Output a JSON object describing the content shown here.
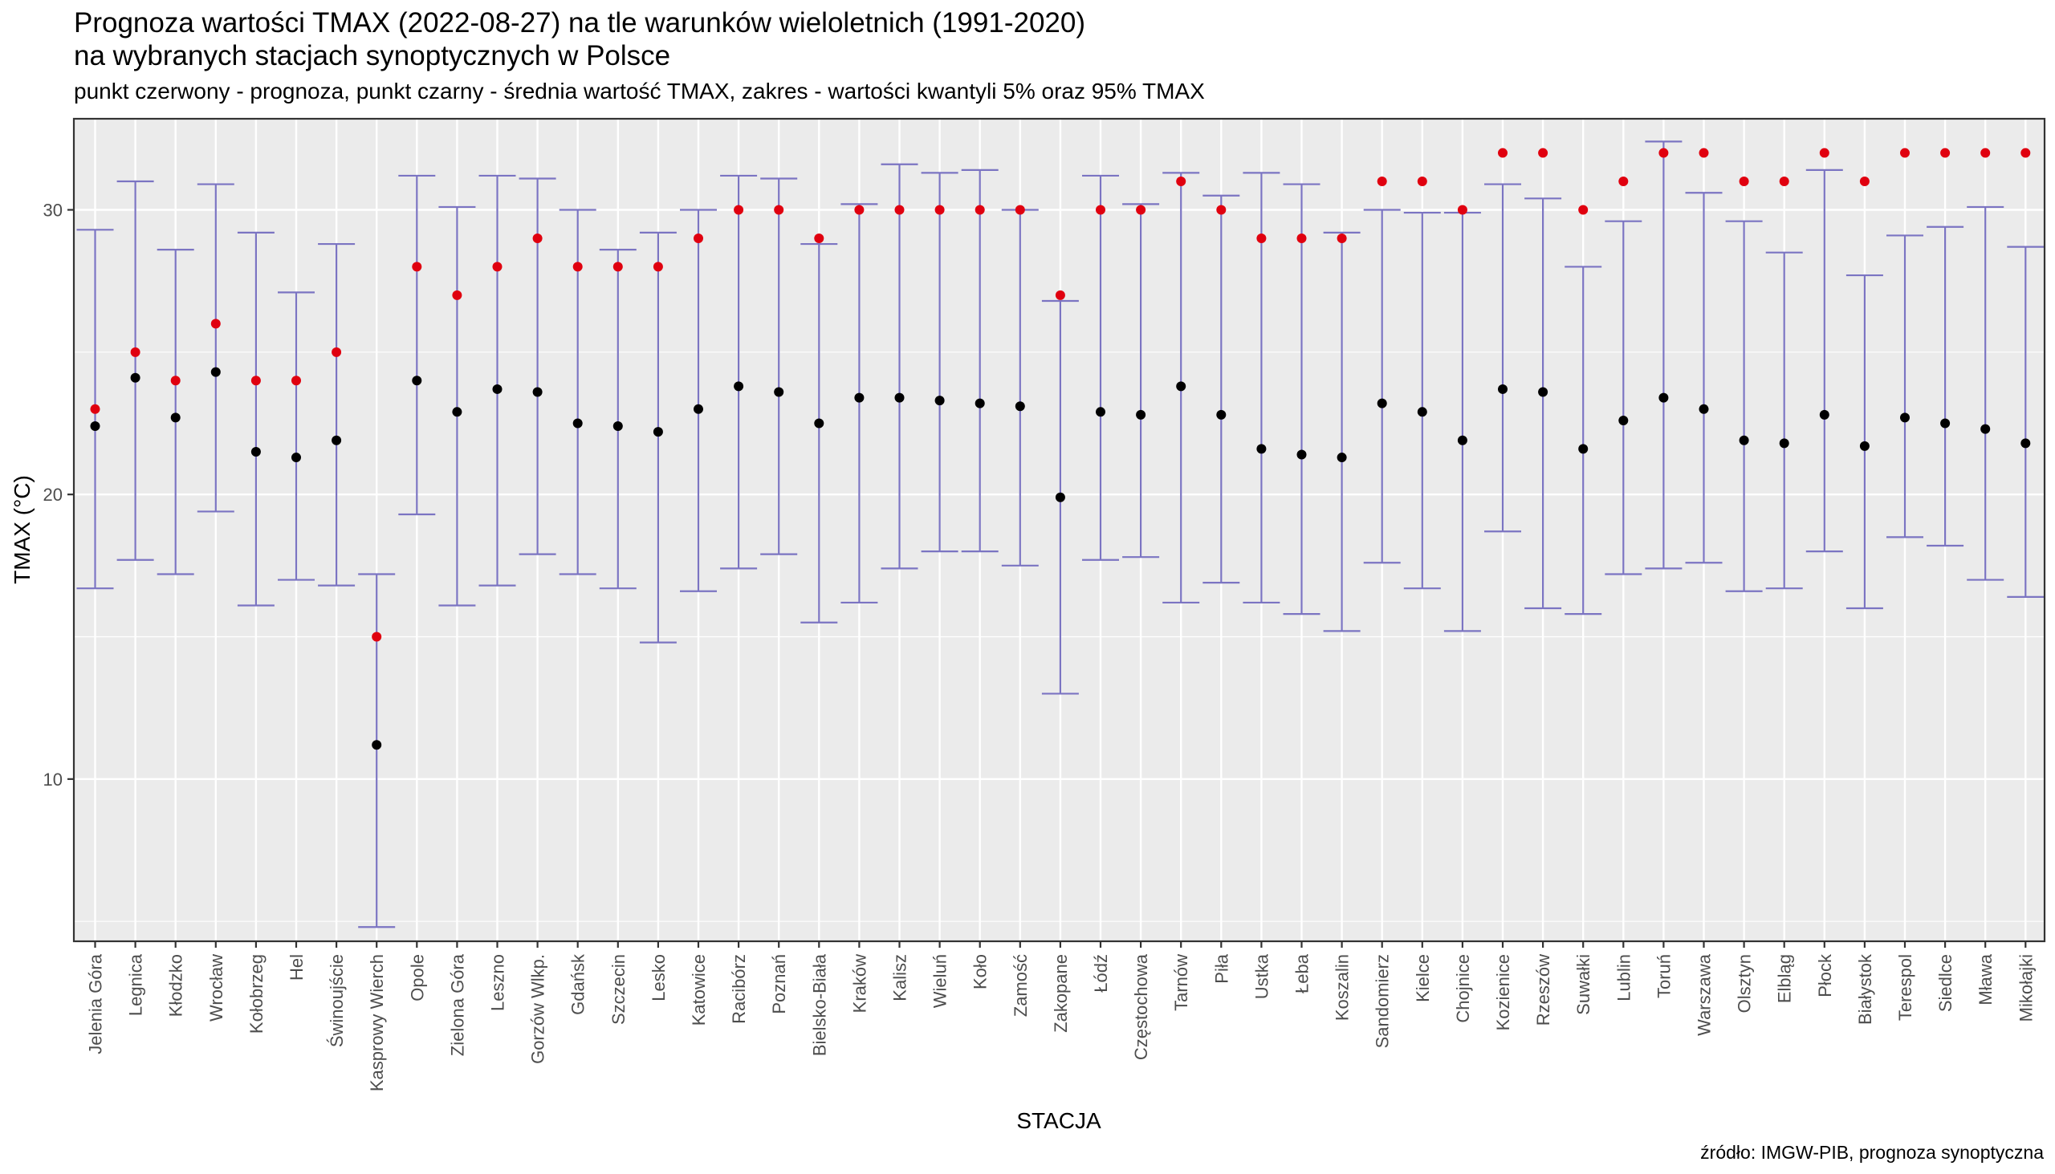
{
  "title": "Prognoza wartości TMAX (2022-08-27) na tle warunków wieloletnich (1991-2020)",
  "title_line2": "na wybranych stacjach synoptycznych w Polsce",
  "subtitle": "punkt czerwony - prognoza, punkt czarny - średnia wartość TMAX, zakres - wartości kwantyli 5% oraz 95% TMAX",
  "caption": "źródło: IMGW-PIB, prognoza synoptyczna",
  "colors": {
    "forecast_point": "#e0000f",
    "mean_point": "#000000",
    "range_bar": "#7b74c2",
    "panel_background": "#ebebeb",
    "grid": "#ffffff"
  },
  "chart_data": {
    "type": "scatter",
    "xlabel": "STACJA",
    "ylabel": "TMAX (°C)",
    "ylim": [
      4.3,
      33.2
    ],
    "yticks": [
      10,
      20,
      30
    ],
    "grid": true,
    "categories": [
      "Jelenia Góra",
      "Legnica",
      "Kłodzko",
      "Wrocław",
      "Kołobrzeg",
      "Hel",
      "Świnoujście",
      "Kasprowy Wierch",
      "Opole",
      "Zielona Góra",
      "Leszno",
      "Gorzów Wlkp.",
      "Gdańsk",
      "Szczecin",
      "Lesko",
      "Katowice",
      "Racibórz",
      "Poznań",
      "Bielsko-Biała",
      "Kraków",
      "Kalisz",
      "Wieluń",
      "Koło",
      "Zamość",
      "Zakopane",
      "Łódź",
      "Częstochowa",
      "Tarnów",
      "Piła",
      "Ustka",
      "Łeba",
      "Koszalin",
      "Sandomierz",
      "Kielce",
      "Chojnice",
      "Kozienice",
      "Rzeszów",
      "Suwałki",
      "Lublin",
      "Toruń",
      "Warszawa",
      "Olsztyn",
      "Elbląg",
      "Płock",
      "Białystok",
      "Terespol",
      "Siedlce",
      "Mława",
      "Mikołajki"
    ],
    "series": [
      {
        "name": "punkt czerwony - prognoza",
        "values": [
          23,
          25,
          24,
          26,
          24,
          24,
          25,
          15,
          28,
          27,
          28,
          29,
          28,
          28,
          28,
          29,
          30,
          30,
          29,
          30,
          30,
          30,
          30,
          30,
          27,
          30,
          30,
          31,
          30,
          29,
          29,
          29,
          31,
          31,
          30,
          32,
          32,
          30,
          31,
          32,
          32,
          31,
          31,
          32,
          31,
          32,
          32,
          32,
          32
        ]
      },
      {
        "name": "punkt czarny - średnia wartość TMAX",
        "values": [
          22.4,
          24.1,
          22.7,
          24.3,
          21.5,
          21.3,
          21.9,
          11.2,
          24.0,
          22.9,
          23.7,
          23.6,
          22.5,
          22.4,
          22.2,
          23.0,
          23.8,
          23.6,
          22.5,
          23.4,
          23.4,
          23.3,
          23.2,
          23.1,
          19.9,
          22.9,
          22.8,
          23.8,
          22.8,
          21.6,
          21.4,
          21.3,
          23.2,
          22.9,
          21.9,
          23.7,
          23.6,
          21.6,
          22.6,
          23.4,
          23.0,
          21.9,
          21.8,
          22.8,
          21.7,
          22.7,
          22.5,
          22.3,
          21.8
        ]
      },
      {
        "name": "kwantyl 5%",
        "values": [
          16.7,
          17.7,
          17.2,
          19.4,
          16.1,
          17.0,
          16.8,
          4.8,
          19.3,
          16.1,
          16.8,
          17.9,
          17.2,
          16.7,
          14.8,
          16.6,
          17.4,
          17.9,
          15.5,
          16.2,
          17.4,
          18.0,
          18.0,
          17.5,
          13.0,
          17.7,
          17.8,
          16.2,
          16.9,
          16.2,
          15.8,
          15.2,
          17.6,
          16.7,
          15.2,
          18.7,
          16.0,
          15.8,
          17.2,
          17.4,
          17.6,
          16.6,
          16.7,
          18.0,
          16.0,
          18.5,
          18.2,
          17.0,
          16.4
        ]
      },
      {
        "name": "kwantyl 95%",
        "values": [
          29.3,
          31.0,
          28.6,
          30.9,
          29.2,
          27.1,
          28.8,
          17.2,
          31.2,
          30.1,
          31.2,
          31.1,
          30.0,
          28.6,
          29.2,
          30.0,
          31.2,
          31.1,
          28.8,
          30.2,
          31.6,
          31.3,
          31.4,
          30.0,
          26.8,
          31.2,
          30.2,
          31.3,
          30.5,
          31.3,
          30.9,
          29.2,
          30.0,
          29.9,
          29.9,
          30.9,
          30.4,
          28.0,
          29.6,
          32.4,
          30.6,
          29.6,
          28.5,
          31.4,
          27.7,
          29.1,
          29.4,
          30.1,
          28.7
        ]
      }
    ]
  }
}
